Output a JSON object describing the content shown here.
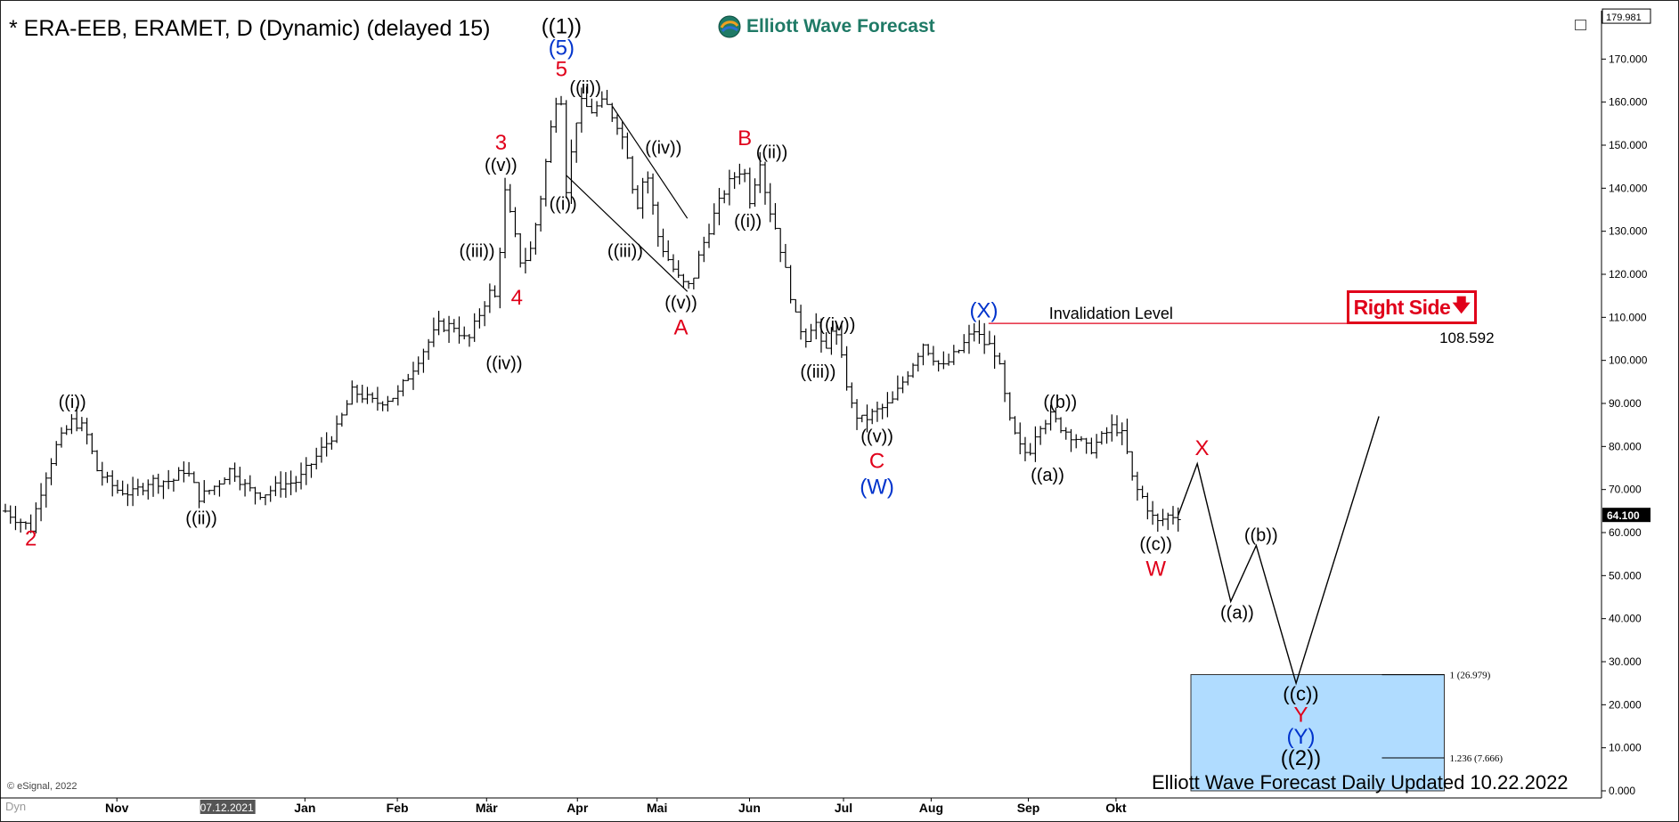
{
  "header": {
    "title": "* ERA-EEB, ERAMET, D (Dynamic) (delayed 15)",
    "brand": "Elliott Wave Forecast",
    "copyright": "© eSignal, 2022",
    "dyn_label": "Dyn"
  },
  "footer": {
    "update_text": "Elliott Wave Forecast Daily Updated 10.22.2022"
  },
  "badge": {
    "label": "Right Side",
    "arrow": "🡇"
  },
  "invalidation": {
    "label": "Invalidation Level",
    "value": "108.592",
    "price": 108.592
  },
  "last_price": {
    "label": "64.100",
    "value": 64.1
  },
  "top_price": {
    "label": "179.981",
    "value": 179.981
  },
  "colors": {
    "wave_red": "#e0001a",
    "wave_blue": "#0033cc",
    "black": "#000000",
    "target_box": "#b0dcff",
    "brand_green": "#1f7a66"
  },
  "chart_data": {
    "type": "bar",
    "style": "OHLC",
    "ylim": [
      0,
      180
    ],
    "y_ticks": [
      {
        "v": 170,
        "label": "170.000"
      },
      {
        "v": 160,
        "label": "160.000"
      },
      {
        "v": 150,
        "label": "150.000"
      },
      {
        "v": 140,
        "label": "140.000"
      },
      {
        "v": 130,
        "label": "130.000"
      },
      {
        "v": 120,
        "label": "120.000"
      },
      {
        "v": 110,
        "label": "110.000"
      },
      {
        "v": 100,
        "label": "100.000"
      },
      {
        "v": 90,
        "label": "90.000"
      },
      {
        "v": 80,
        "label": "80.000"
      },
      {
        "v": 70,
        "label": "70.000"
      },
      {
        "v": 60,
        "label": "60.000"
      },
      {
        "v": 50,
        "label": "50.000"
      },
      {
        "v": 40,
        "label": "40.000"
      },
      {
        "v": 30,
        "label": "30.000"
      },
      {
        "v": 20,
        "label": "20.000"
      },
      {
        "v": 10,
        "label": "10.000"
      },
      {
        "v": 0,
        "label": "0.000"
      }
    ],
    "x_ticks": [
      {
        "label": "Nov",
        "t": 0.07
      },
      {
        "label": "07.12.2021",
        "t": 0.139,
        "highlight": true
      },
      {
        "label": "Jan",
        "t": 0.188
      },
      {
        "label": "Feb",
        "t": 0.246
      },
      {
        "label": "Mär",
        "t": 0.302
      },
      {
        "label": "Apr",
        "t": 0.359
      },
      {
        "label": "Mai",
        "t": 0.409
      },
      {
        "label": "Jun",
        "t": 0.467
      },
      {
        "label": "Jul",
        "t": 0.526
      },
      {
        "label": "Aug",
        "t": 0.581
      },
      {
        "label": "Sep",
        "t": 0.642
      },
      {
        "label": "Okt",
        "t": 0.697
      }
    ],
    "price_path": [
      [
        0.0,
        65
      ],
      [
        0.016,
        61
      ],
      [
        0.024,
        72
      ],
      [
        0.032,
        80
      ],
      [
        0.042,
        86
      ],
      [
        0.05,
        84
      ],
      [
        0.058,
        74
      ],
      [
        0.07,
        70
      ],
      [
        0.08,
        69
      ],
      [
        0.09,
        72
      ],
      [
        0.105,
        72
      ],
      [
        0.113,
        75
      ],
      [
        0.122,
        68
      ],
      [
        0.132,
        71
      ],
      [
        0.142,
        75
      ],
      [
        0.152,
        70
      ],
      [
        0.162,
        69
      ],
      [
        0.172,
        71
      ],
      [
        0.184,
        72
      ],
      [
        0.196,
        78
      ],
      [
        0.208,
        84
      ],
      [
        0.218,
        93
      ],
      [
        0.232,
        90
      ],
      [
        0.246,
        92
      ],
      [
        0.26,
        101
      ],
      [
        0.272,
        108
      ],
      [
        0.282,
        108
      ],
      [
        0.29,
        104
      ],
      [
        0.3,
        113
      ],
      [
        0.306,
        117
      ],
      [
        0.308,
        113
      ],
      [
        0.313,
        140
      ],
      [
        0.319,
        130
      ],
      [
        0.324,
        122
      ],
      [
        0.33,
        126
      ],
      [
        0.336,
        138
      ],
      [
        0.342,
        153
      ],
      [
        0.348,
        166
      ],
      [
        0.352,
        140
      ],
      [
        0.36,
        160
      ],
      [
        0.368,
        158
      ],
      [
        0.376,
        160
      ],
      [
        0.384,
        155
      ],
      [
        0.39,
        149
      ],
      [
        0.396,
        135
      ],
      [
        0.402,
        145
      ],
      [
        0.41,
        128
      ],
      [
        0.418,
        122
      ],
      [
        0.424,
        118
      ],
      [
        0.43,
        117
      ],
      [
        0.436,
        125
      ],
      [
        0.444,
        133
      ],
      [
        0.452,
        140
      ],
      [
        0.458,
        143
      ],
      [
        0.463,
        145
      ],
      [
        0.468,
        136
      ],
      [
        0.473,
        148
      ],
      [
        0.478,
        137
      ],
      [
        0.484,
        130
      ],
      [
        0.49,
        120
      ],
      [
        0.496,
        110
      ],
      [
        0.502,
        105
      ],
      [
        0.508,
        110
      ],
      [
        0.514,
        100
      ],
      [
        0.518,
        108
      ],
      [
        0.522,
        105
      ],
      [
        0.526,
        98
      ],
      [
        0.532,
        88
      ],
      [
        0.538,
        86
      ],
      [
        0.546,
        88
      ],
      [
        0.556,
        90
      ],
      [
        0.566,
        97
      ],
      [
        0.576,
        104
      ],
      [
        0.588,
        98
      ],
      [
        0.6,
        103
      ],
      [
        0.608,
        107
      ],
      [
        0.614,
        104
      ],
      [
        0.62,
        103
      ],
      [
        0.624,
        98
      ],
      [
        0.63,
        86
      ],
      [
        0.636,
        80
      ],
      [
        0.642,
        78
      ],
      [
        0.648,
        85
      ],
      [
        0.656,
        87
      ],
      [
        0.664,
        84
      ],
      [
        0.672,
        82
      ],
      [
        0.68,
        79
      ],
      [
        0.688,
        82
      ],
      [
        0.696,
        85
      ],
      [
        0.702,
        82
      ],
      [
        0.708,
        71
      ],
      [
        0.714,
        68
      ],
      [
        0.722,
        62
      ],
      [
        0.73,
        64
      ],
      [
        0.736,
        64
      ]
    ],
    "projection": [
      {
        "t": 0.736,
        "v": 64
      },
      {
        "t": 0.748,
        "v": 76
      },
      {
        "t": 0.769,
        "v": 44
      },
      {
        "t": 0.785,
        "v": 57
      },
      {
        "t": 0.81,
        "v": 25
      },
      {
        "t": 0.862,
        "v": 87
      }
    ],
    "channel_lines": [
      {
        "t1": 0.352,
        "v1": 143,
        "t2": 0.428,
        "v2": 116
      },
      {
        "t1": 0.381,
        "v1": 159,
        "t2": 0.428,
        "v2": 133
      }
    ],
    "target_zone": {
      "t1": 0.744,
      "t2": 0.903,
      "v_top": 27,
      "v_bottom": 0,
      "fib_levels": [
        {
          "v": 26.979,
          "label": "1 (26.979)"
        },
        {
          "v": 7.666,
          "label": "1.236 (7.666)"
        }
      ]
    },
    "wave_labels": [
      {
        "text": "2",
        "t": 0.016,
        "v": 57,
        "color": "red",
        "size": 24
      },
      {
        "text": "((i))",
        "t": 0.042,
        "v": 89,
        "color": "black",
        "size": 20
      },
      {
        "text": "((ii))",
        "t": 0.123,
        "v": 62,
        "color": "black",
        "size": 20
      },
      {
        "text": "((iii))",
        "t": 0.296,
        "v": 124,
        "color": "black",
        "size": 20
      },
      {
        "text": "((iv))",
        "t": 0.313,
        "v": 98,
        "color": "black",
        "size": 20
      },
      {
        "text": "((v))",
        "t": 0.311,
        "v": 144,
        "color": "black",
        "size": 20
      },
      {
        "text": "3",
        "t": 0.311,
        "v": 149,
        "color": "red",
        "size": 24
      },
      {
        "text": "4",
        "t": 0.321,
        "v": 113,
        "color": "red",
        "size": 24
      },
      {
        "text": "((1))",
        "t": 0.349,
        "v": 176,
        "color": "black",
        "size": 24
      },
      {
        "text": "(5)",
        "t": 0.349,
        "v": 171,
        "color": "blue",
        "size": 24
      },
      {
        "text": "5",
        "t": 0.349,
        "v": 166,
        "color": "red",
        "size": 24
      },
      {
        "text": "((ii))",
        "t": 0.364,
        "v": 162,
        "color": "black",
        "size": 20
      },
      {
        "text": "((i))",
        "t": 0.35,
        "v": 135,
        "color": "black",
        "size": 20
      },
      {
        "text": "((iv))",
        "t": 0.413,
        "v": 148,
        "color": "black",
        "size": 20
      },
      {
        "text": "((iii))",
        "t": 0.389,
        "v": 124,
        "color": "black",
        "size": 20
      },
      {
        "text": "((v))",
        "t": 0.424,
        "v": 112,
        "color": "black",
        "size": 20
      },
      {
        "text": "A",
        "t": 0.424,
        "v": 106,
        "color": "red",
        "size": 24
      },
      {
        "text": "B",
        "t": 0.464,
        "v": 150,
        "color": "red",
        "size": 24
      },
      {
        "text": "((ii))",
        "t": 0.481,
        "v": 147,
        "color": "black",
        "size": 20
      },
      {
        "text": "((i))",
        "t": 0.466,
        "v": 131,
        "color": "black",
        "size": 20
      },
      {
        "text": "((iv))",
        "t": 0.522,
        "v": 107,
        "color": "black",
        "size": 20
      },
      {
        "text": "((iii))",
        "t": 0.51,
        "v": 96,
        "color": "black",
        "size": 20
      },
      {
        "text": "((v))",
        "t": 0.547,
        "v": 81,
        "color": "black",
        "size": 20
      },
      {
        "text": "C",
        "t": 0.547,
        "v": 75,
        "color": "red",
        "size": 24
      },
      {
        "text": "(W)",
        "t": 0.547,
        "v": 69,
        "color": "blue",
        "size": 24
      },
      {
        "text": "(X)",
        "t": 0.614,
        "v": 110,
        "color": "blue",
        "size": 24
      },
      {
        "text": "((b))",
        "t": 0.662,
        "v": 89,
        "color": "black",
        "size": 20
      },
      {
        "text": "((a))",
        "t": 0.654,
        "v": 72,
        "color": "black",
        "size": 20
      },
      {
        "text": "((c))",
        "t": 0.722,
        "v": 56,
        "color": "black",
        "size": 20
      },
      {
        "text": "W",
        "t": 0.722,
        "v": 50,
        "color": "red",
        "size": 24
      },
      {
        "text": "X",
        "t": 0.751,
        "v": 78,
        "color": "red",
        "size": 24
      },
      {
        "text": "((b))",
        "t": 0.788,
        "v": 58,
        "color": "black",
        "size": 20
      },
      {
        "text": "((a))",
        "t": 0.773,
        "v": 40,
        "color": "black",
        "size": 20
      },
      {
        "text": "((c))",
        "t": 0.813,
        "v": 21,
        "color": "black",
        "size": 22
      },
      {
        "text": "Y",
        "t": 0.813,
        "v": 16,
        "color": "red",
        "size": 24
      },
      {
        "text": "(Y)",
        "t": 0.813,
        "v": 11,
        "color": "blue",
        "size": 24
      },
      {
        "text": "((2))",
        "t": 0.813,
        "v": 6,
        "color": "black",
        "size": 24
      }
    ]
  }
}
